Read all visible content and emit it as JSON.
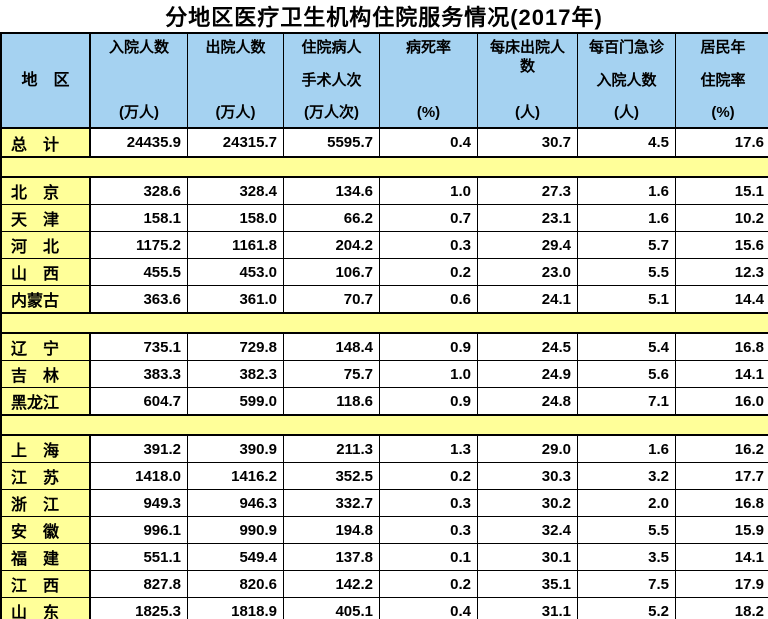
{
  "title": "分地区医疗卫生机构住院服务情况(2017年)",
  "colors": {
    "header_bg": "#A5D2F1",
    "highlight_bg": "#FFFF99",
    "border": "#000000",
    "text": "#000000"
  },
  "table": {
    "region_header": "地　区",
    "columns": [
      {
        "title": "入院人数",
        "title2": "",
        "unit": "(万人)"
      },
      {
        "title": "出院人数",
        "title2": "",
        "unit": "(万人)"
      },
      {
        "title": "住院病人",
        "title2": "手术人次",
        "unit": "(万人次)"
      },
      {
        "title": "病死率",
        "title2": "",
        "unit": "(%)"
      },
      {
        "title": "每床出院人数",
        "title2": "",
        "unit": "(人)"
      },
      {
        "title": "每百门急诊",
        "title2": "入院人数",
        "unit": "(人)"
      },
      {
        "title": "居民年",
        "title2": "住院率",
        "unit": "(%)"
      }
    ],
    "total_row": {
      "label": "总　计",
      "values": [
        "24435.9",
        "24315.7",
        "5595.7",
        "0.4",
        "30.7",
        "4.5",
        "17.6"
      ]
    },
    "groups": [
      {
        "rows": [
          {
            "label": "北　京",
            "values": [
              "328.6",
              "328.4",
              "134.6",
              "1.0",
              "27.3",
              "1.6",
              "15.1"
            ]
          },
          {
            "label": "天　津",
            "values": [
              "158.1",
              "158.0",
              "66.2",
              "0.7",
              "23.1",
              "1.6",
              "10.2"
            ]
          },
          {
            "label": "河　北",
            "values": [
              "1175.2",
              "1161.8",
              "204.2",
              "0.3",
              "29.4",
              "5.7",
              "15.6"
            ]
          },
          {
            "label": "山　西",
            "values": [
              "455.5",
              "453.0",
              "106.7",
              "0.2",
              "23.0",
              "5.5",
              "12.3"
            ]
          },
          {
            "label": "内蒙古",
            "values": [
              "363.6",
              "361.0",
              "70.7",
              "0.6",
              "24.1",
              "5.1",
              "14.4"
            ]
          }
        ]
      },
      {
        "rows": [
          {
            "label": "辽　宁",
            "values": [
              "735.1",
              "729.8",
              "148.4",
              "0.9",
              "24.5",
              "5.4",
              "16.8"
            ]
          },
          {
            "label": "吉　林",
            "values": [
              "383.3",
              "382.3",
              "75.7",
              "1.0",
              "24.9",
              "5.6",
              "14.1"
            ]
          },
          {
            "label": "黑龙江",
            "values": [
              "604.7",
              "599.0",
              "118.6",
              "0.9",
              "24.8",
              "7.1",
              "16.0"
            ]
          }
        ]
      },
      {
        "rows": [
          {
            "label": "上　海",
            "values": [
              "391.2",
              "390.9",
              "211.3",
              "1.3",
              "29.0",
              "1.6",
              "16.2"
            ]
          },
          {
            "label": "江　苏",
            "values": [
              "1418.0",
              "1416.2",
              "352.5",
              "0.2",
              "30.3",
              "3.2",
              "17.7"
            ]
          },
          {
            "label": "浙　江",
            "values": [
              "949.3",
              "946.3",
              "332.7",
              "0.3",
              "30.2",
              "2.0",
              "16.8"
            ]
          },
          {
            "label": "安　徽",
            "values": [
              "996.1",
              "990.9",
              "194.8",
              "0.3",
              "32.4",
              "5.5",
              "15.9"
            ]
          },
          {
            "label": "福　建",
            "values": [
              "551.1",
              "549.4",
              "137.8",
              "0.1",
              "30.1",
              "3.5",
              "14.1"
            ]
          },
          {
            "label": "江　西",
            "values": [
              "827.8",
              "820.6",
              "142.2",
              "0.2",
              "35.1",
              "7.5",
              "17.9"
            ]
          },
          {
            "label": "山　东",
            "values": [
              "1825.3",
              "1818.9",
              "405.1",
              "0.4",
              "31.1",
              "5.2",
              "18.2"
            ]
          }
        ]
      }
    ]
  }
}
